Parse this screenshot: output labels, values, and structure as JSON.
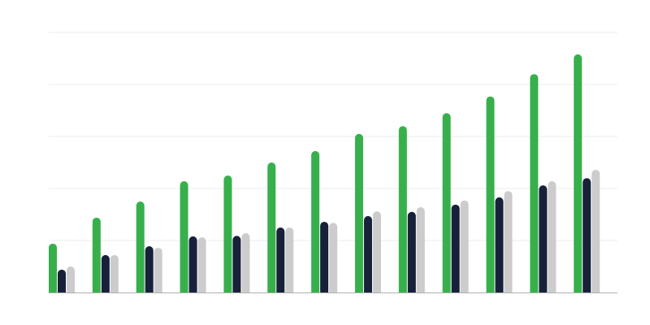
{
  "chart_data": {
    "type": "bar",
    "title": "",
    "xlabel": "",
    "ylabel": "",
    "categories": [
      "",
      "",
      "",
      "",
      "",
      "",
      "",
      "",
      "",
      "",
      "",
      "",
      ""
    ],
    "ylim": [
      0,
      5
    ],
    "grid": true,
    "legend": "none",
    "series": [
      {
        "color": "#37b04c",
        "values": [
          0.94,
          1.44,
          1.75,
          2.14,
          2.25,
          2.5,
          2.72,
          3.05,
          3.2,
          3.45,
          3.77,
          4.2,
          4.58
        ]
      },
      {
        "color": "#18213a",
        "values": [
          0.44,
          0.72,
          0.89,
          1.08,
          1.09,
          1.25,
          1.36,
          1.47,
          1.55,
          1.69,
          1.83,
          2.06,
          2.2
        ]
      },
      {
        "color": "#cccccc",
        "values": [
          0.5,
          0.72,
          0.86,
          1.06,
          1.14,
          1.25,
          1.34,
          1.56,
          1.64,
          1.77,
          1.95,
          2.14,
          2.36
        ]
      }
    ],
    "gridline_color": "#eeeeee",
    "baseline_color": "#b0b0b0"
  }
}
